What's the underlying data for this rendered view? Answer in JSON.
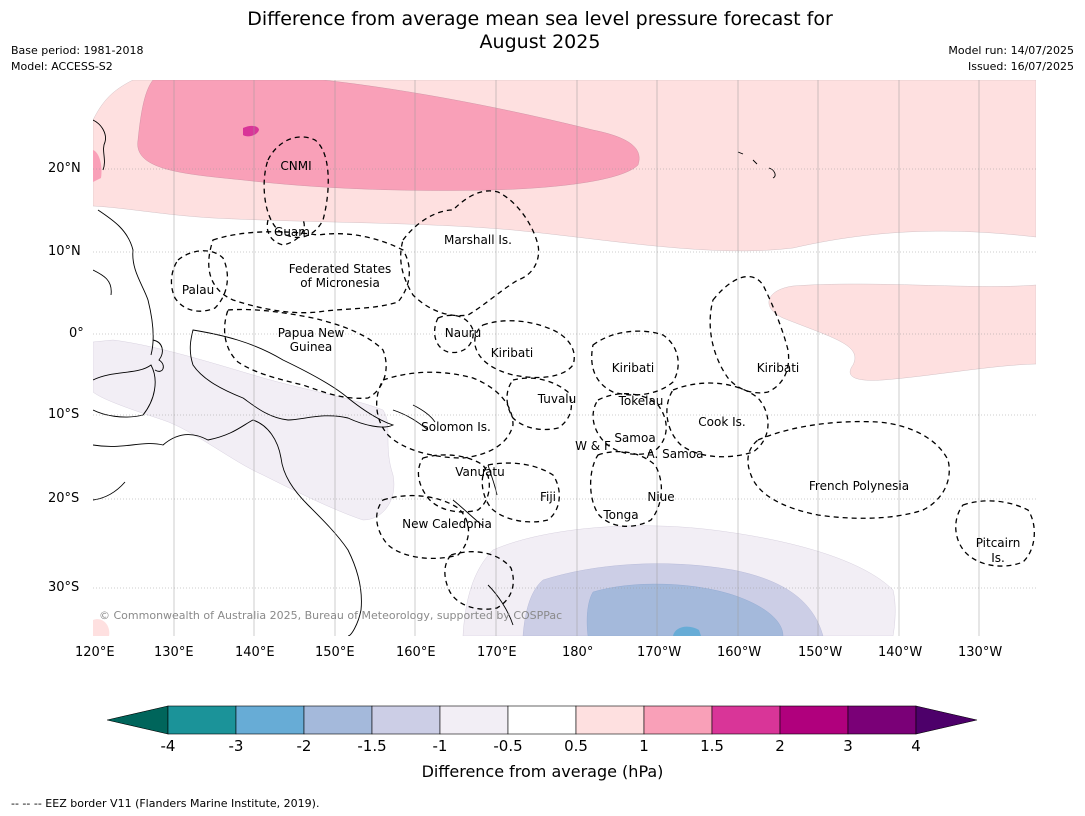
{
  "title_line1": "Difference from average mean sea level pressure forecast for",
  "title_line2": "August 2025",
  "base_period": "Base period: 1981-2018",
  "model": "Model: ACCESS-S2",
  "model_run": "Model run: 14/07/2025",
  "issued": "Issued: 16/07/2025",
  "credit": "© Commonwealth of Australia 2025, Bureau of Meteorology, supported by COSPPac",
  "lon_labels": [
    "120°E",
    "130°E",
    "140°E",
    "150°E",
    "160°E",
    "170°E",
    "180°",
    "170°W",
    "160°W",
    "150°W",
    "140°W",
    "130°W"
  ],
  "lat_labels": [
    "20°N",
    "10°N",
    "0°",
    "10°S",
    "20°S",
    "30°S"
  ],
  "regions": [
    "CNMI",
    "Guam",
    "Marshall Is.",
    "Federated States",
    "of Micronesia",
    "Palau",
    "Papua New",
    "Guinea",
    "Nauru",
    "Kiribati",
    "Kiribati",
    "Kiribati",
    "Tuvalu",
    "Tokelau",
    "Cook Is.",
    "Solomon Is.",
    "Samoa",
    "W & F",
    "A. Samoa",
    "Vanuatu",
    "Fiji",
    "Niue",
    "French Polynesia",
    "Tonga",
    "New Caledonia",
    "Pitcairn",
    "Is."
  ],
  "colorbar": {
    "title": "Difference from average (hPa)",
    "ticks": [
      "-4",
      "-3",
      "-2",
      "-1.5",
      "-1",
      "-0.5",
      "0.5",
      "1",
      "1.5",
      "2",
      "3",
      "4"
    ],
    "colors": [
      "#00655b",
      "#1b9399",
      "#67acd6",
      "#a4b9db",
      "#cccee6",
      "#f2eef5",
      "#ffffff",
      "#fee0e0",
      "#f9a0b8",
      "#d93598",
      "#b0007d",
      "#7a0077",
      "#4d006a"
    ]
  },
  "footer": "-- -- -- EEZ border V11 (Flanders Marine Institute, 2019)."
}
